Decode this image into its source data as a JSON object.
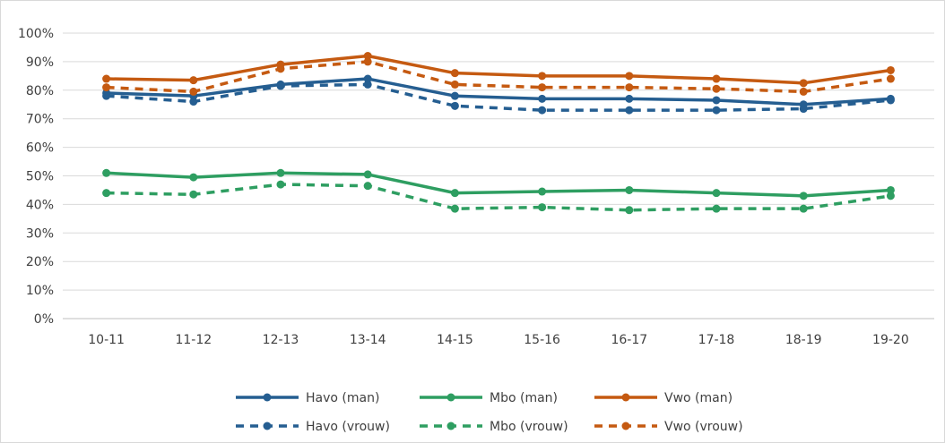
{
  "chart_data": {
    "type": "line",
    "title": "",
    "xlabel": "",
    "ylabel": "",
    "categories": [
      "10-11",
      "11-12",
      "12-13",
      "13-14",
      "14-15",
      "15-16",
      "16-17",
      "17-18",
      "18-19",
      "19-20"
    ],
    "ylim": [
      0,
      100
    ],
    "yticks": [
      "0%",
      "10%",
      "20%",
      "30%",
      "40%",
      "50%",
      "60%",
      "70%",
      "80%",
      "90%",
      "100%"
    ],
    "grid": "horizontal",
    "legend_position": "bottom",
    "series": [
      {
        "name": "Havo (man)",
        "color": "#255e91",
        "dash": "solid",
        "values": [
          79,
          78,
          82,
          84,
          78,
          77,
          77,
          76.5,
          75,
          77
        ]
      },
      {
        "name": "Mbo (man)",
        "color": "#2e9e61",
        "dash": "solid",
        "values": [
          51,
          49.5,
          51,
          50.5,
          44,
          44.5,
          45,
          44,
          43,
          45
        ]
      },
      {
        "name": "Vwo (man)",
        "color": "#c55a11",
        "dash": "solid",
        "values": [
          84,
          83.5,
          89,
          92,
          86,
          85,
          85,
          84,
          82.5,
          87
        ]
      },
      {
        "name": "Havo (vrouw)",
        "color": "#255e91",
        "dash": "dashed",
        "values": [
          78,
          76,
          81.5,
          82,
          74.5,
          73,
          73,
          73,
          73.5,
          76.5
        ]
      },
      {
        "name": "Mbo (vrouw)",
        "color": "#2e9e61",
        "dash": "dashed",
        "values": [
          44,
          43.5,
          47,
          46.5,
          38.5,
          39,
          38,
          38.5,
          38.5,
          43
        ]
      },
      {
        "name": "Vwo (vrouw)",
        "color": "#c55a11",
        "dash": "dashed",
        "values": [
          81,
          79.5,
          87.5,
          90,
          82,
          81,
          81,
          80.5,
          79.5,
          84
        ]
      }
    ]
  }
}
